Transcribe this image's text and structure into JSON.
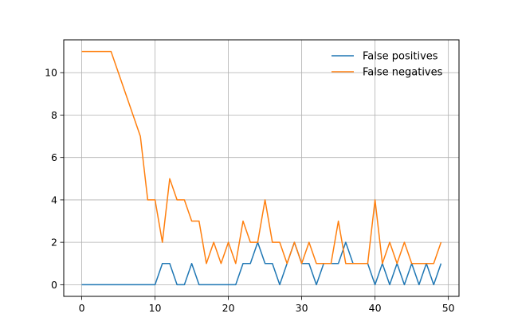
{
  "chart_data": {
    "type": "line",
    "title": "",
    "xlabel": "",
    "ylabel": "",
    "xlim": [
      -2.45,
      51.45
    ],
    "ylim": [
      -0.55,
      11.55
    ],
    "xticks": [
      0,
      10,
      20,
      30,
      40,
      50
    ],
    "yticks": [
      0,
      2,
      4,
      6,
      8,
      10
    ],
    "grid": true,
    "legend_position": "top-right",
    "x": [
      0,
      1,
      2,
      3,
      4,
      5,
      6,
      7,
      8,
      9,
      10,
      11,
      12,
      13,
      14,
      15,
      16,
      17,
      18,
      19,
      20,
      21,
      22,
      23,
      24,
      25,
      26,
      27,
      28,
      29,
      30,
      31,
      32,
      33,
      34,
      35,
      36,
      37,
      38,
      39,
      40,
      41,
      42,
      43,
      44,
      45,
      46,
      47,
      48,
      49
    ],
    "series": [
      {
        "name": "False positives",
        "color": "#1f77b4",
        "values": [
          0,
          0,
          0,
          0,
          0,
          0,
          0,
          0,
          0,
          0,
          0,
          1,
          1,
          0,
          0,
          1,
          0,
          0,
          0,
          0,
          0,
          0,
          1,
          1,
          2,
          1,
          1,
          0,
          1,
          2,
          1,
          1,
          0,
          1,
          1,
          1,
          2,
          1,
          1,
          1,
          0,
          1,
          0,
          1,
          0,
          1,
          0,
          1,
          0,
          1
        ]
      },
      {
        "name": "False negatives",
        "color": "#ff7f0e",
        "values": [
          11,
          11,
          11,
          11,
          11,
          10,
          9,
          8,
          7,
          4,
          4,
          2,
          5,
          4,
          4,
          3,
          3,
          1,
          2,
          1,
          2,
          1,
          3,
          2,
          2,
          4,
          2,
          2,
          1,
          2,
          1,
          2,
          1,
          1,
          1,
          3,
          1,
          1,
          1,
          1,
          4,
          1,
          2,
          1,
          2,
          1,
          1,
          1,
          1,
          2
        ]
      }
    ]
  }
}
